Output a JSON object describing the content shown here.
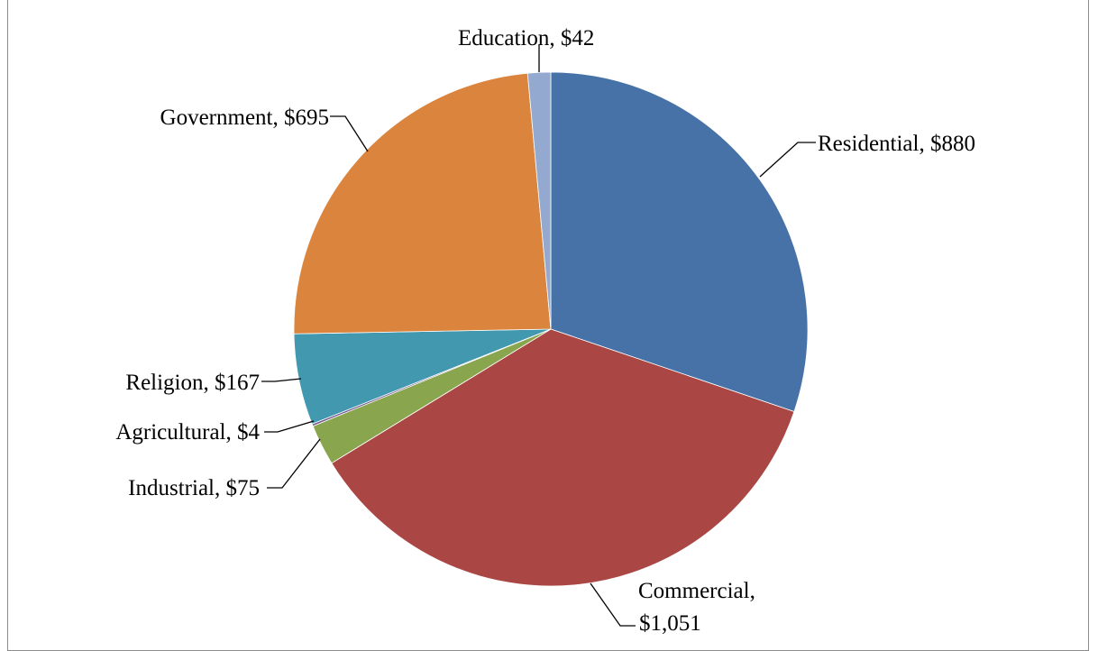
{
  "chart_data": {
    "type": "pie",
    "title": "",
    "start_angle_deg": 0,
    "direction": "clockwise",
    "slices": [
      {
        "category": "Residential",
        "value": 880,
        "value_label": "$880",
        "color": "#4672A8"
      },
      {
        "category": "Commercial",
        "value": 1051,
        "value_label": "$1,051",
        "color": "#AA4744"
      },
      {
        "category": "Industrial",
        "value": 75,
        "value_label": "$75",
        "color": "#89A54E"
      },
      {
        "category": "Agricultural",
        "value": 4,
        "value_label": "$4",
        "color": "#71588F"
      },
      {
        "category": "Religion",
        "value": 167,
        "value_label": "$167",
        "color": "#4298AF"
      },
      {
        "category": "Government",
        "value": 695,
        "value_label": "$695",
        "color": "#DB843D"
      },
      {
        "category": "Education",
        "value": 42,
        "value_label": "$42",
        "color": "#93A9CF"
      }
    ],
    "data_labels": {
      "residential": {
        "line1": "Residential, $880"
      },
      "commercial": {
        "line1": "Commercial,",
        "line2": "$1,051"
      },
      "industrial": {
        "line1": "Industrial, $75"
      },
      "agricultural": {
        "line1": "Agricultural, $4"
      },
      "religion": {
        "line1": "Religion, $167"
      },
      "government": {
        "line1": "Government, $695"
      },
      "education": {
        "line1": "Education, $42"
      }
    }
  }
}
